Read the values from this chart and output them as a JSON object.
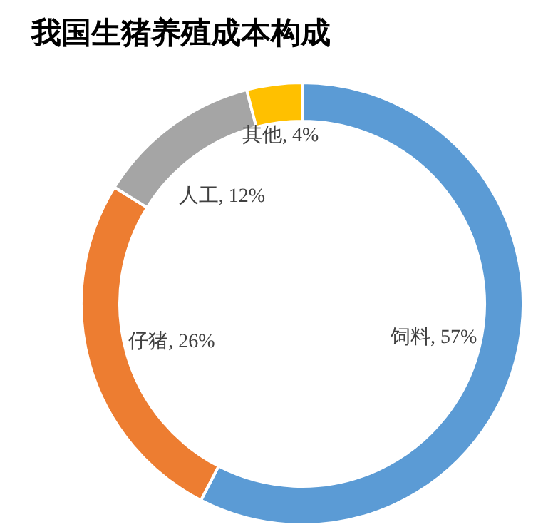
{
  "chart_data": {
    "type": "donut",
    "title": "我国生猪养殖成本构成",
    "categories": [
      "饲料",
      "仔猪",
      "人工",
      "其他"
    ],
    "values": [
      57,
      26,
      12,
      4
    ],
    "value_labels": [
      "57%",
      "26%",
      "12%",
      "4%"
    ],
    "colors": [
      "#5b9bd5",
      "#ed7d31",
      "#a5a5a5",
      "#ffc000"
    ]
  }
}
